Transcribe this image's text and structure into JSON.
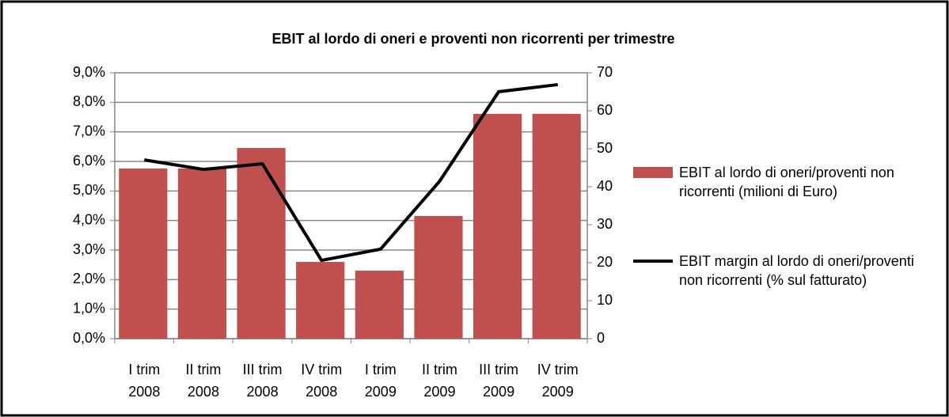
{
  "chart_data": {
    "type": "bar-line",
    "title": "EBIT al lordo di oneri e proventi non ricorrenti per trimestre",
    "categories": [
      "I trim 2008",
      "II trim 2008",
      "III trim 2008",
      "IV trim 2008",
      "I trim 2009",
      "II trim 2009",
      "III trim 2009",
      "IV trim 2009"
    ],
    "series": [
      {
        "name": "EBIT al lordo di oneri/proventi non ricorrenti (milioni di Euro)",
        "type": "bar",
        "axis": "y2",
        "color": "#c0504d",
        "values": [
          44.8,
          44.8,
          50.2,
          20.2,
          17.9,
          32.3,
          59.2,
          59.2
        ]
      },
      {
        "name": "EBIT margin al lordo di oneri/proventi non ricorrenti (% sul fatturato)",
        "type": "line",
        "axis": "y",
        "color": "#000000",
        "values": [
          6.05,
          5.73,
          5.92,
          2.65,
          3.03,
          5.33,
          8.36,
          8.6
        ]
      }
    ],
    "ylim": [
      0,
      9
    ],
    "yticks": [
      {
        "value": 0,
        "label": "0,0%"
      },
      {
        "value": 1,
        "label": "1,0%"
      },
      {
        "value": 2,
        "label": "2,0%"
      },
      {
        "value": 3,
        "label": "3,0%"
      },
      {
        "value": 4,
        "label": "4,0%"
      },
      {
        "value": 5,
        "label": "5,0%"
      },
      {
        "value": 6,
        "label": "6,0%"
      },
      {
        "value": 7,
        "label": "7,0%"
      },
      {
        "value": 8,
        "label": "8,0%"
      },
      {
        "value": 9,
        "label": "9,0%"
      }
    ],
    "y2lim": [
      0,
      70
    ],
    "y2ticks": [
      0,
      10,
      20,
      30,
      40,
      50,
      60,
      70
    ],
    "grid": true
  }
}
